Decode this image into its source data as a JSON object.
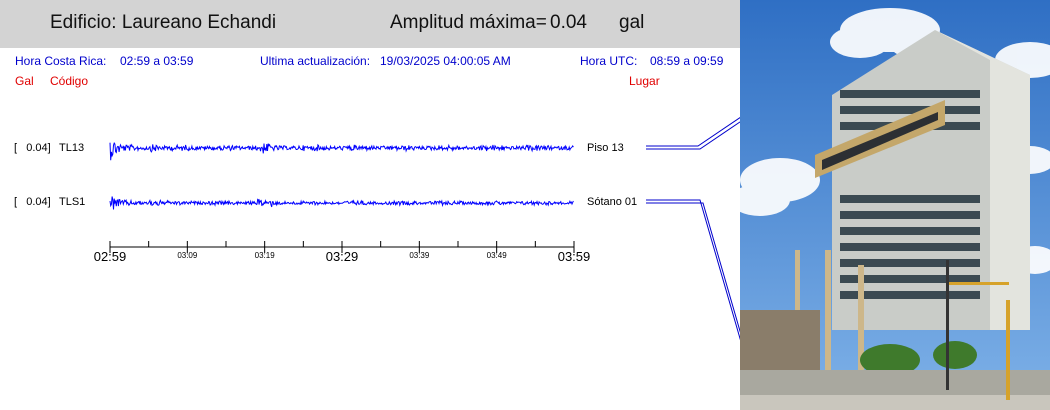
{
  "header": {
    "building_label": "Edificio:",
    "building_name": "Laureano Echandi",
    "amplitude_label": "Amplitud máxima=",
    "amplitude_value": "0.04",
    "amplitude_unit": "gal"
  },
  "info": {
    "local_time_label": "Hora Costa Rica:",
    "local_time_range": "02:59 a 03:59",
    "update_label": "Ultima actualización:",
    "update_value": "19/03/2025 04:00:05 AM",
    "utc_label": "Hora UTC:",
    "utc_range": "08:59 a 09:59"
  },
  "columns": {
    "gal": "Gal",
    "code": "Código",
    "place": "Lugar"
  },
  "channels": [
    {
      "amplitude": "[   0.04]",
      "code": "TL13",
      "place": "Piso 13"
    },
    {
      "amplitude": "[   0.04]",
      "code": "TLS1",
      "place": "Sótano 01"
    }
  ],
  "time_axis": {
    "major_ticks": [
      "02:59",
      "03:29",
      "03:59"
    ],
    "minor_ticks": [
      "03:09",
      "03:19",
      "03:39",
      "03:49"
    ]
  },
  "colors": {
    "trace": "#0000ff",
    "info_text": "#0000cc",
    "column_text": "#e00000",
    "header_bg": "#d3d3d3"
  }
}
